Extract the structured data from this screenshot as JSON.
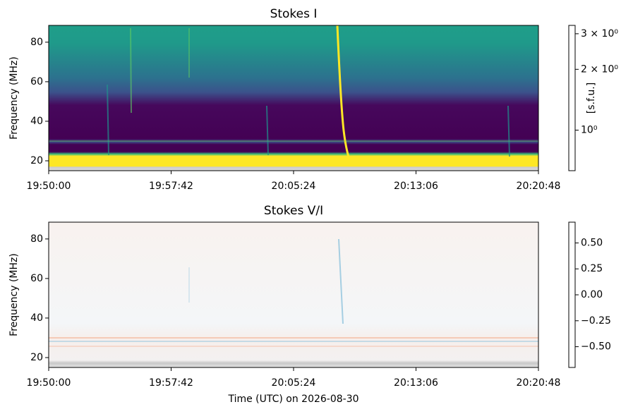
{
  "chart_data": [
    {
      "type": "heatmap",
      "title": "Stokes I",
      "ylabel": "Frequency (MHz)",
      "xlim": [
        "19:50:00",
        "20:20:48"
      ],
      "xticks": [
        "19:50:00",
        "19:57:42",
        "20:05:24",
        "20:13:06",
        "20:20:48"
      ],
      "ylim": [
        15,
        88.5
      ],
      "yticks": [
        20,
        40,
        60,
        80
      ],
      "colormap": "viridis",
      "colorbar_label": "[s.f.u.]",
      "colorbar_scale": "log",
      "clim": [
        0.63,
        3.3
      ],
      "colorbar_ticks": [
        {
          "value": 1,
          "label": "10⁰"
        },
        {
          "value": 2,
          "label": "2 × 10⁰"
        },
        {
          "value": 3,
          "label": "3 × 10⁰"
        }
      ]
    },
    {
      "type": "heatmap",
      "title": "Stokes V/I",
      "ylabel": "Frequency (MHz)",
      "xlabel": "Time (UTC) on 2026-08-30",
      "xlim": [
        "19:50:00",
        "20:20:48"
      ],
      "xticks": [
        "19:50:00",
        "19:57:42",
        "20:05:24",
        "20:13:06",
        "20:20:48"
      ],
      "ylim": [
        15,
        88.5
      ],
      "yticks": [
        20,
        40,
        60,
        80
      ],
      "colormap": "RdBu_r",
      "colorbar_scale": "linear",
      "clim": [
        -0.7,
        0.7
      ],
      "colorbar_ticks": [
        {
          "value": -0.5,
          "label": "−0.50"
        },
        {
          "value": -0.25,
          "label": "−0.25"
        },
        {
          "value": 0,
          "label": "0.00"
        },
        {
          "value": 0.25,
          "label": "0.25"
        },
        {
          "value": 0.5,
          "label": "0.50"
        }
      ]
    }
  ]
}
